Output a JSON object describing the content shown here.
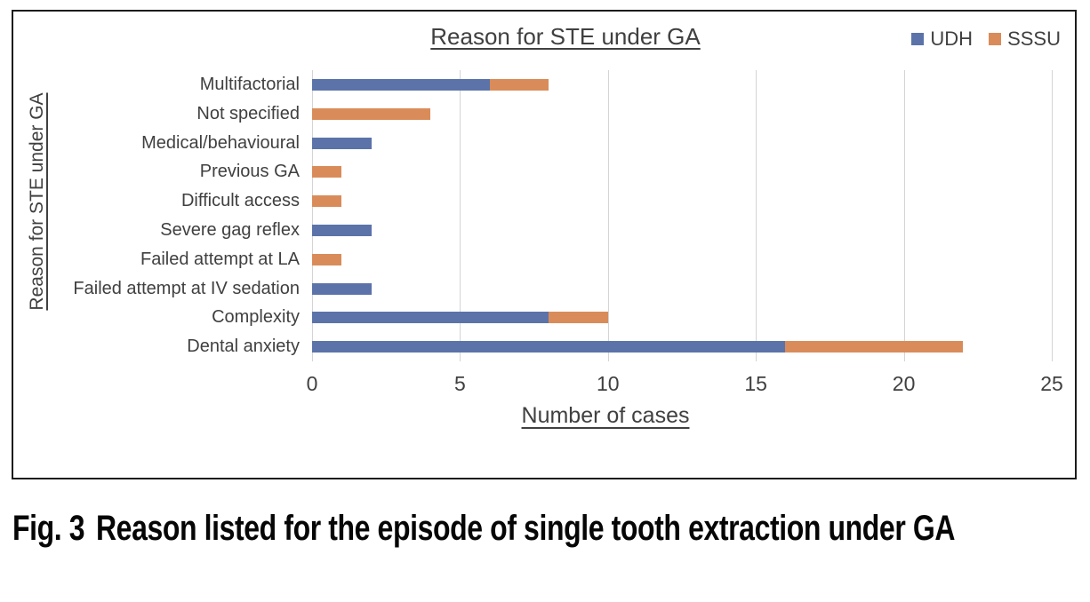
{
  "figure": {
    "caption_label": "Fig. 3",
    "caption_text": "Reason listed for the episode of single tooth extraction under GA"
  },
  "chart_data": {
    "type": "bar",
    "orientation": "horizontal",
    "stacked": true,
    "title": "Reason for STE under GA",
    "xlabel": "Number of cases",
    "ylabel": "Reason for STE under GA",
    "xlim": [
      0,
      25
    ],
    "xticks": [
      0,
      5,
      10,
      15,
      20,
      25
    ],
    "grid": true,
    "legend_position": "top-right",
    "categories": [
      "Multifactorial",
      "Not specified",
      "Medical/behavioural",
      "Previous GA",
      "Difficult access",
      "Severe gag reflex",
      "Failed attempt at LA",
      "Failed attempt at IV sedation",
      "Complexity",
      "Dental anxiety"
    ],
    "series": [
      {
        "name": "UDH",
        "color": "#5B73A9",
        "values": [
          6,
          0,
          2,
          0,
          0,
          2,
          0,
          2,
          8,
          16
        ]
      },
      {
        "name": "SSSU",
        "color": "#D98C5A",
        "values": [
          2,
          4,
          0,
          1,
          1,
          0,
          1,
          0,
          2,
          6
        ]
      }
    ],
    "colors": {
      "gridline": "#d4d4d4",
      "text": "#404040",
      "frame_border": "#1c1c1c"
    }
  }
}
